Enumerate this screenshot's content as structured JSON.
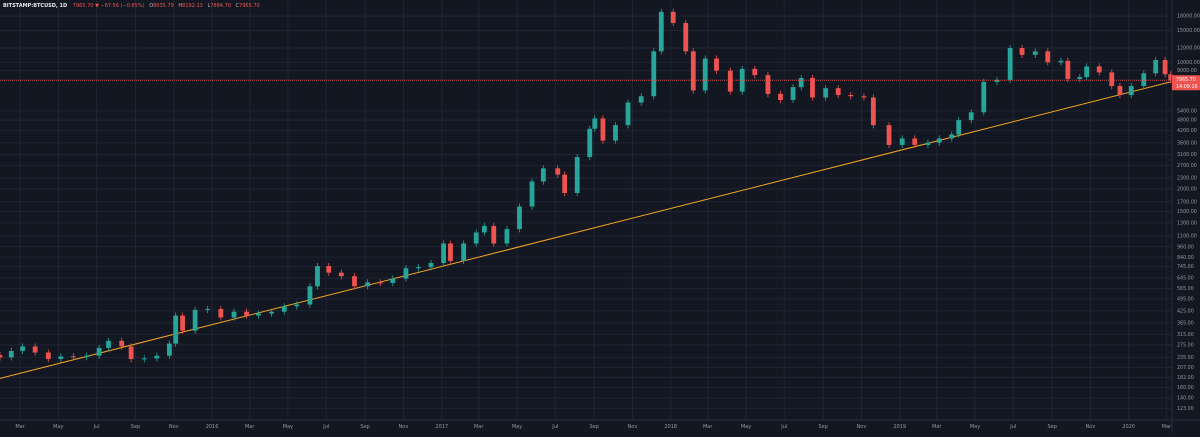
{
  "header": {
    "symbol": "BITSTAMP:BTCUSD, 1D",
    "price": "7965.70",
    "arrow": "▼",
    "change": "−67.56 (−0.85%)",
    "o_label": "O",
    "o_value": "8035.79",
    "h_label": "H",
    "h_value": "8192.13",
    "l_label": "L",
    "l_value": "7884.70",
    "c_label": "C",
    "c_value": "7965.70"
  },
  "colors": {
    "background": "#131722",
    "grid": "#1f2433",
    "up": "#26a69a",
    "down": "#ef5350",
    "trendline": "#f5a623",
    "price_line": "#ef5350",
    "axis_text": "#9598a1"
  },
  "chart_data": {
    "type": "candlestick",
    "title": "",
    "xlabel": "",
    "ylabel": "",
    "scale": "log",
    "ylim": [
      106,
      21000
    ],
    "grid": true,
    "x_ticks": [
      "Mar",
      "May",
      "Jul",
      "Sep",
      "Nov",
      "2016",
      "Mar",
      "May",
      "Jul",
      "Sep",
      "Nov",
      "2017",
      "Mar",
      "May",
      "Jul",
      "Sep",
      "Nov",
      "2018",
      "Mar",
      "May",
      "Jul",
      "Sep",
      "Nov",
      "2019",
      "Mar",
      "May",
      "Jul",
      "Sep",
      "Nov",
      "2020",
      "Mar"
    ],
    "x_tick_dates": [
      "2015-03-01",
      "2015-05-01",
      "2015-07-01",
      "2015-09-01",
      "2015-11-01",
      "2016-01-01",
      "2016-03-01",
      "2016-05-01",
      "2016-07-01",
      "2016-09-01",
      "2016-11-01",
      "2017-01-01",
      "2017-03-01",
      "2017-05-01",
      "2017-07-01",
      "2017-09-01",
      "2017-11-01",
      "2018-01-01",
      "2018-03-01",
      "2018-05-01",
      "2018-07-01",
      "2018-09-01",
      "2018-11-01",
      "2019-01-01",
      "2019-03-01",
      "2019-05-01",
      "2019-07-01",
      "2019-09-01",
      "2019-11-01",
      "2020-01-01",
      "2020-03-01"
    ],
    "x_range": [
      "2015-01-28",
      "2020-03-10"
    ],
    "y_ticks": [
      "25000.00",
      "18000.00",
      "15000.00",
      "12000.00",
      "10000.00",
      "9000.00",
      "8000.00",
      "7965.70",
      "5400.00",
      "4800.00",
      "4200.00",
      "3600.00",
      "3100.00",
      "2700.00",
      "2300.00",
      "2000.00",
      "1700.00",
      "1500.00",
      "1300.00",
      "1100.00",
      "960.00",
      "840.00",
      "745.00",
      "645.00",
      "565.00",
      "495.00",
      "425.00",
      "365.00",
      "315.00",
      "275.00",
      "235.00",
      "207.00",
      "182.00",
      "160.00",
      "140.00",
      "123.00"
    ],
    "price_label": "7965.70",
    "countdown_label": "14:09:16",
    "price_line_value": 7965.7,
    "trendline": [
      {
        "date": "2015-01-28",
        "price": 180
      },
      {
        "date": "2020-03-10",
        "price": 7840
      }
    ],
    "series": {
      "dates": [
        "2015-01-28",
        "2015-02-15",
        "2015-03-05",
        "2015-03-25",
        "2015-04-15",
        "2015-05-05",
        "2015-05-25",
        "2015-06-15",
        "2015-07-05",
        "2015-07-20",
        "2015-08-10",
        "2015-08-25",
        "2015-09-15",
        "2015-10-05",
        "2015-10-25",
        "2015-11-04",
        "2015-11-15",
        "2015-12-05",
        "2015-12-25",
        "2016-01-15",
        "2016-02-05",
        "2016-02-25",
        "2016-03-15",
        "2016-04-05",
        "2016-04-25",
        "2016-05-15",
        "2016-06-05",
        "2016-06-17",
        "2016-07-05",
        "2016-07-25",
        "2016-08-15",
        "2016-09-05",
        "2016-09-25",
        "2016-10-15",
        "2016-11-05",
        "2016-11-25",
        "2016-12-15",
        "2017-01-04",
        "2017-01-15",
        "2017-02-05",
        "2017-02-25",
        "2017-03-10",
        "2017-03-25",
        "2017-04-15",
        "2017-05-05",
        "2017-05-25",
        "2017-06-12",
        "2017-07-05",
        "2017-07-16",
        "2017-08-05",
        "2017-08-25",
        "2017-09-02",
        "2017-09-15",
        "2017-10-05",
        "2017-10-25",
        "2017-11-15",
        "2017-12-05",
        "2017-12-17",
        "2018-01-05",
        "2018-01-25",
        "2018-02-06",
        "2018-02-25",
        "2018-03-15",
        "2018-04-06",
        "2018-04-25",
        "2018-05-15",
        "2018-06-05",
        "2018-06-25",
        "2018-07-15",
        "2018-07-28",
        "2018-08-15",
        "2018-09-05",
        "2018-09-25",
        "2018-10-15",
        "2018-11-05",
        "2018-11-20",
        "2018-12-15",
        "2019-01-05",
        "2019-01-25",
        "2019-02-15",
        "2019-03-05",
        "2019-03-25",
        "2019-04-05",
        "2019-04-25",
        "2019-05-15",
        "2019-06-05",
        "2019-06-26",
        "2019-07-15",
        "2019-08-05",
        "2019-08-25",
        "2019-09-15",
        "2019-09-26",
        "2019-10-15",
        "2019-10-26",
        "2019-11-15",
        "2019-12-05",
        "2019-12-18",
        "2020-01-05",
        "2020-01-25",
        "2020-02-13",
        "2020-02-28",
        "2020-03-08"
      ],
      "close": [
        235,
        255,
        270,
        250,
        230,
        238,
        236,
        240,
        265,
        290,
        270,
        230,
        232,
        240,
        280,
        400,
        330,
        430,
        435,
        390,
        420,
        400,
        410,
        420,
        450,
        460,
        580,
        750,
        690,
        660,
        580,
        610,
        605,
        640,
        730,
        740,
        780,
        1000,
        800,
        1000,
        1150,
        1250,
        1000,
        1200,
        1600,
        2200,
        2600,
        2400,
        1900,
        3000,
        4300,
        4900,
        3700,
        4500,
        6000,
        6500,
        11500,
        19000,
        16500,
        11500,
        7000,
        10500,
        9000,
        6900,
        9200,
        8500,
        6700,
        6200,
        7300,
        8200,
        6400,
        7200,
        6600,
        6500,
        6400,
        4500,
        3500,
        3800,
        3500,
        3600,
        3800,
        4000,
        4800,
        5300,
        7800,
        8000,
        12000,
        11000,
        11500,
        10000,
        10200,
        8100,
        8300,
        9500,
        8800,
        7400,
        6600,
        7400,
        8700,
        10300,
        8600,
        7965
      ]
    }
  }
}
